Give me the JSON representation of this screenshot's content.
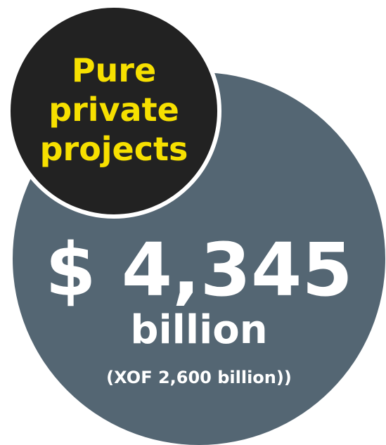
{
  "badge": {
    "lines": [
      "Pure",
      "private",
      "projects"
    ]
  },
  "figure": {
    "amount": "$ 4,345",
    "unit": "billion",
    "equivalent": "(XOF 2,600 billion))"
  }
}
